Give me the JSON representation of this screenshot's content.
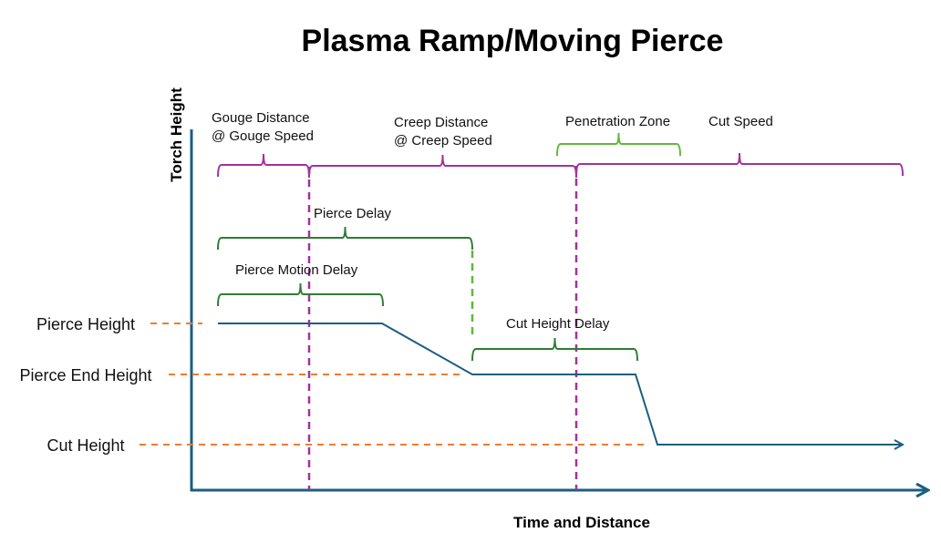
{
  "title": "Plasma Ramp/Moving Pierce",
  "y_axis_label": "Torch Height",
  "x_axis_label": "Time and Distance",
  "height_levels": [
    "Pierce Height",
    "Pierce End Height",
    "Cut Height"
  ],
  "spans": {
    "gouge": [
      "Gouge Distance",
      "@ Gouge Speed"
    ],
    "creep": [
      "Creep Distance",
      "@ Creep Speed"
    ],
    "penetration_zone": "Penetration Zone",
    "cut_speed": "Cut Speed",
    "pierce_delay": "Pierce Delay",
    "pierce_motion_delay": "Pierce Motion Delay",
    "cut_height_delay": "Cut Height Delay"
  },
  "colors": {
    "axis": "#1b5e80",
    "profile": "#1b5e80",
    "reference_lines": "#ed7d31",
    "motion_spans": "#a4319d",
    "delay_spans": "#2e7d32",
    "penetration_zone": "#5fb83a"
  }
}
